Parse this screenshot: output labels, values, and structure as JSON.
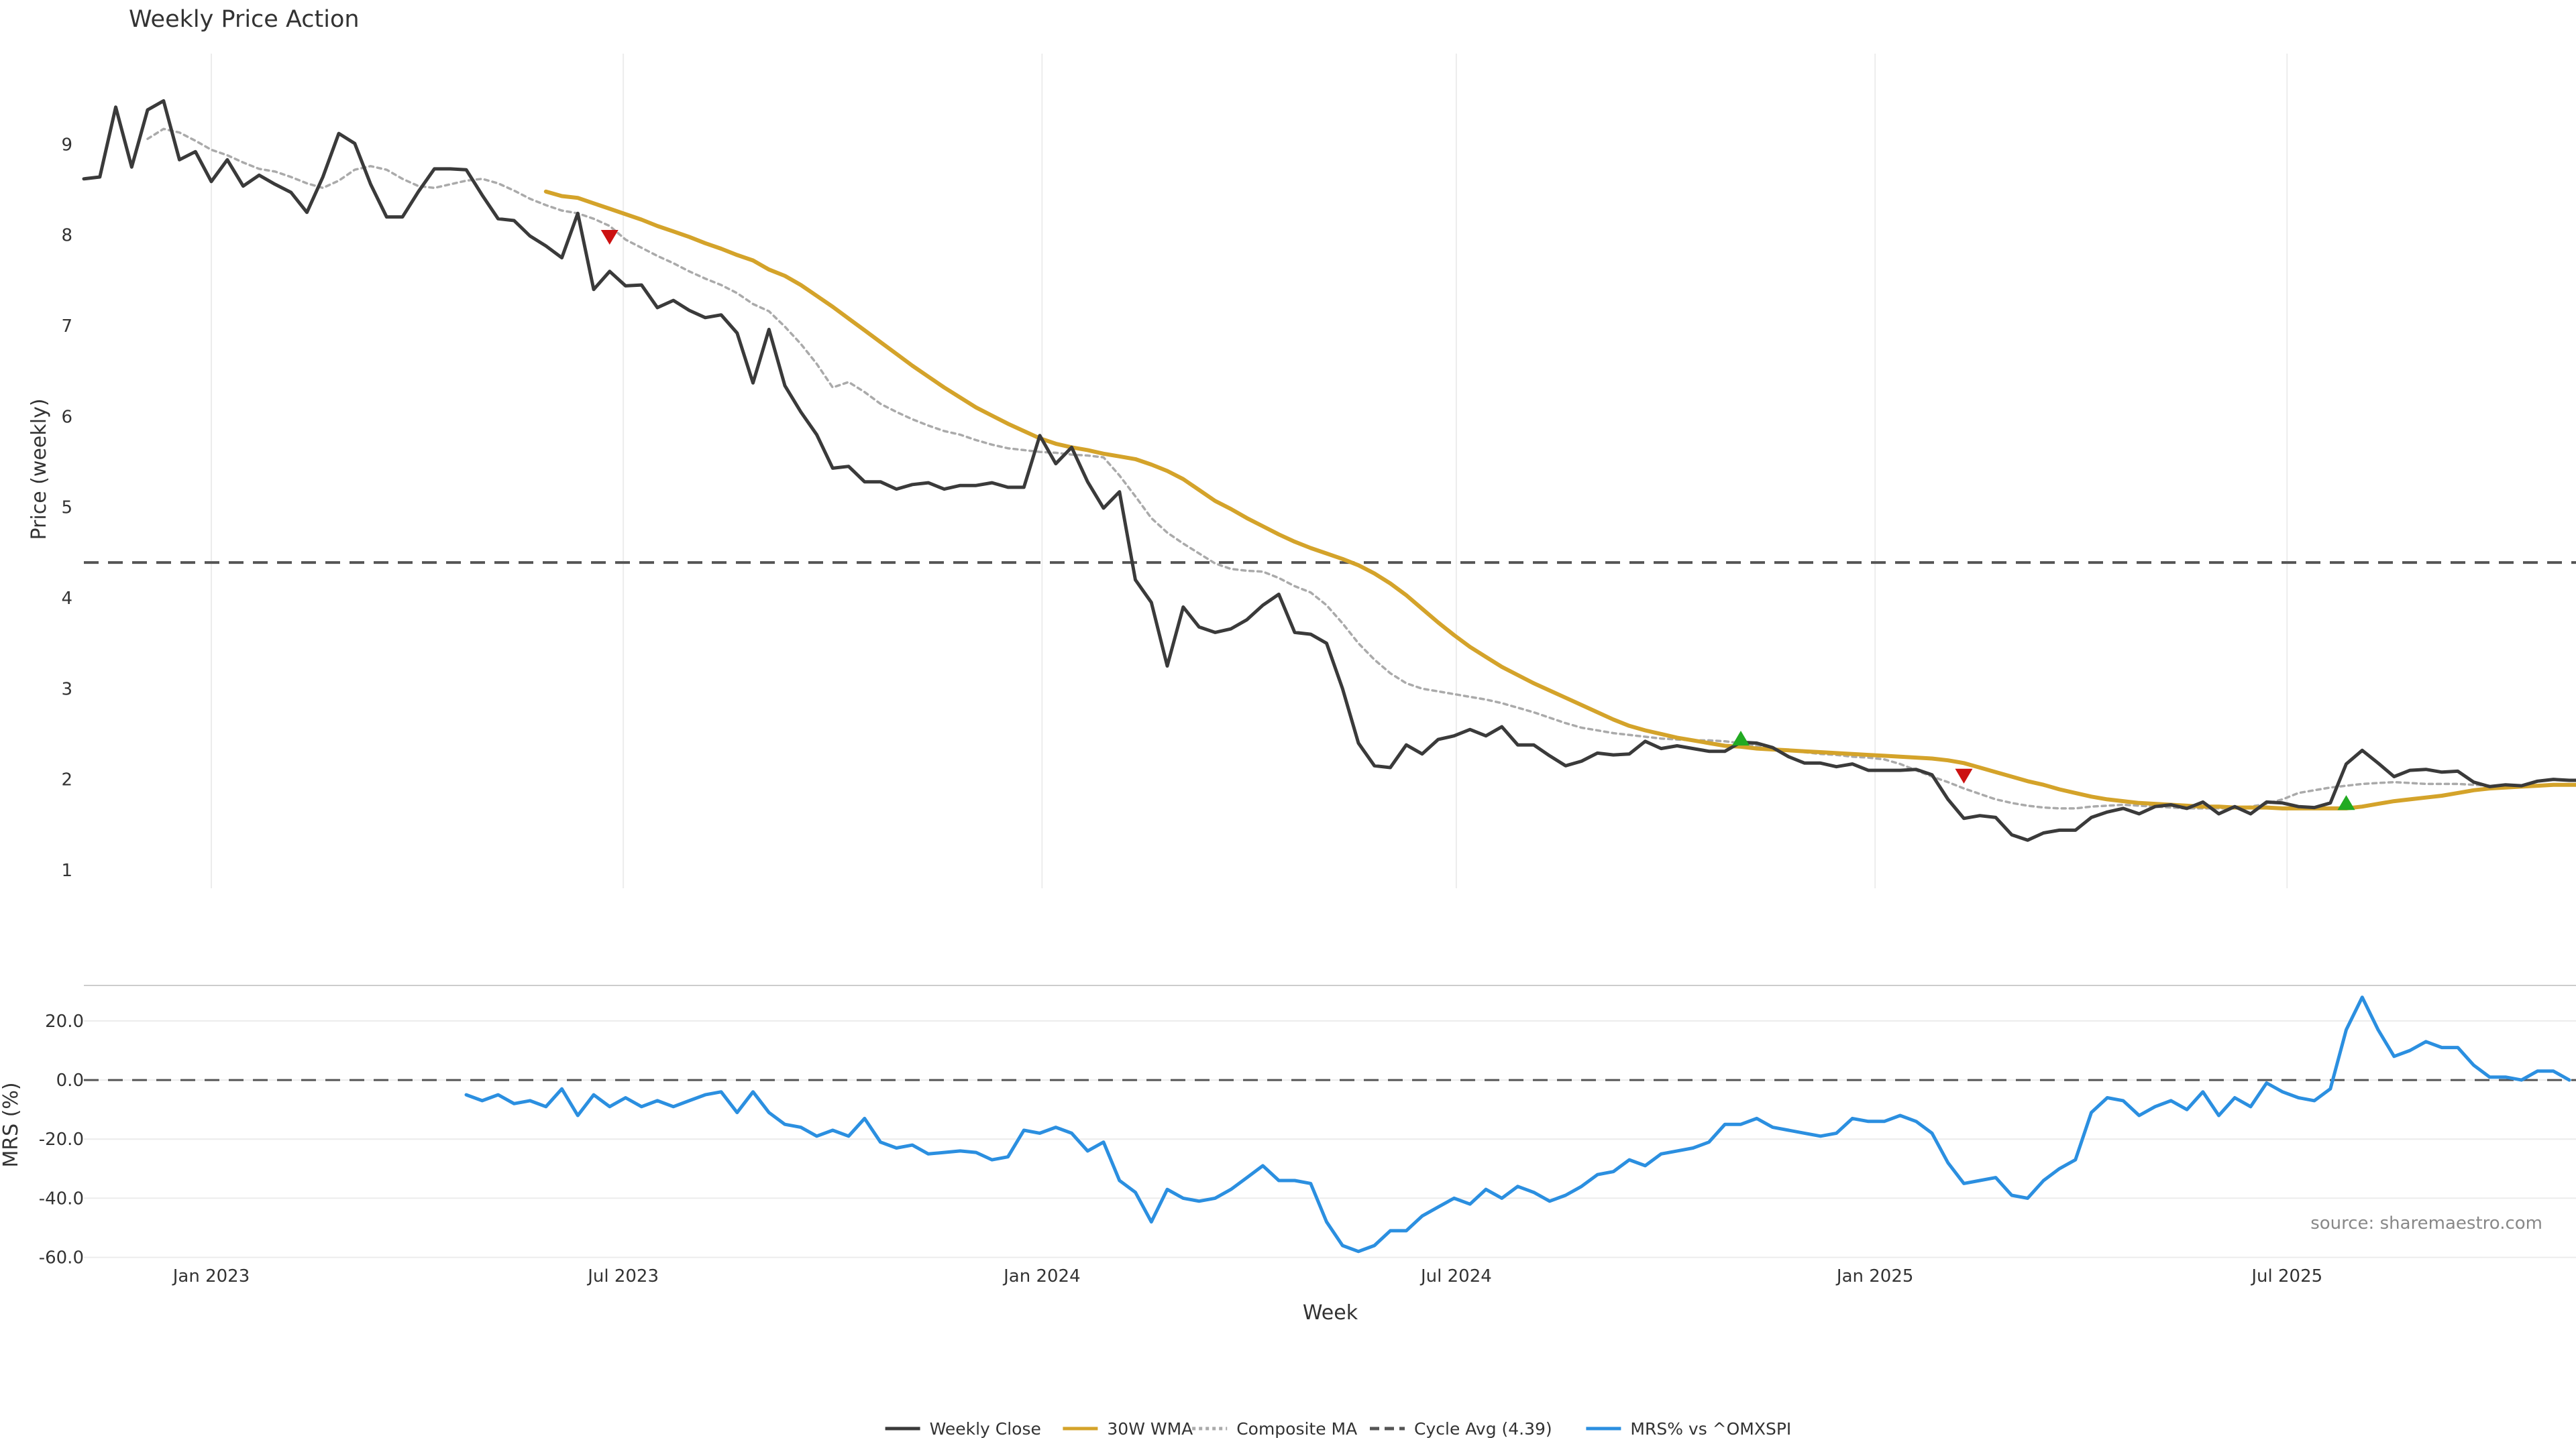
{
  "chart_data": [
    {
      "type": "line",
      "title": "Weekly Price Action",
      "ylabel": "Price (weekly)",
      "ylim": [
        0.8,
        10.0
      ],
      "yticks": [
        1,
        2,
        3,
        4,
        5,
        6,
        7,
        8,
        9
      ],
      "x_start": "2022-11-06",
      "week_count": 158,
      "grid": "vertical",
      "series": [
        {
          "name": "Weekly Close",
          "color": "#3a3a3a",
          "style": "solid",
          "values": [
            8.62,
            8.64,
            9.41,
            8.75,
            9.38,
            9.48,
            8.83,
            8.92,
            8.59,
            8.83,
            8.54,
            8.66,
            8.56,
            8.47,
            8.25,
            8.64,
            9.12,
            9.01,
            8.56,
            8.2,
            8.2,
            8.48,
            8.73,
            8.73,
            8.72,
            8.44,
            8.18,
            8.16,
            7.99,
            7.88,
            7.75,
            8.24,
            7.4,
            7.6,
            7.44,
            7.45,
            7.2,
            7.28,
            7.17,
            7.09,
            7.12,
            6.92,
            6.37,
            6.96,
            6.34,
            6.05,
            5.8,
            5.43,
            5.45,
            5.28,
            5.28,
            5.2,
            5.25,
            5.27,
            5.2,
            5.24,
            5.24,
            5.27,
            5.22,
            5.22,
            5.79,
            5.48,
            5.66,
            5.28,
            4.99,
            5.17,
            4.2,
            3.95,
            3.25,
            3.9,
            3.68,
            3.62,
            3.66,
            3.76,
            3.92,
            4.04,
            3.62,
            3.6,
            3.5,
            3.0,
            2.4,
            2.15,
            2.13,
            2.38,
            2.28,
            2.44,
            2.48,
            2.55,
            2.48,
            2.58,
            2.38,
            2.38,
            2.26,
            2.15,
            2.2,
            2.29,
            2.27,
            2.28,
            2.42,
            2.34,
            2.37,
            2.34,
            2.31,
            2.31,
            2.41,
            2.4,
            2.35,
            2.25,
            2.18,
            2.18,
            2.14,
            2.17,
            2.1,
            2.1,
            2.1,
            2.11,
            2.05,
            1.78,
            1.57,
            1.6,
            1.58,
            1.39,
            1.33,
            1.41,
            1.44,
            1.44,
            1.58,
            1.64,
            1.68,
            1.62,
            1.7,
            1.72,
            1.68,
            1.75,
            1.62,
            1.7,
            1.62,
            1.75,
            1.74,
            1.7,
            1.69,
            1.74,
            2.17,
            2.32,
            2.18,
            2.03,
            2.1,
            2.11,
            2.08,
            2.09,
            1.97,
            1.92,
            1.94,
            1.93,
            1.98,
            2.0,
            1.99,
            1.99
          ]
        },
        {
          "name": "30W WMA",
          "color": "#d4a32a",
          "style": "solid",
          "start_index": 29,
          "values": [
            8.48,
            8.43,
            8.41,
            8.35,
            8.29,
            8.23,
            8.17,
            8.1,
            8.04,
            7.98,
            7.91,
            7.85,
            7.78,
            7.72,
            7.62,
            7.55,
            7.45,
            7.33,
            7.21,
            7.08,
            6.95,
            6.82,
            6.69,
            6.56,
            6.44,
            6.32,
            6.21,
            6.1,
            6.01,
            5.92,
            5.84,
            5.76,
            5.7,
            5.66,
            5.63,
            5.59,
            5.56,
            5.53,
            5.47,
            5.4,
            5.31,
            5.19,
            5.07,
            4.98,
            4.88,
            4.79,
            4.7,
            4.62,
            4.55,
            4.49,
            4.43,
            4.36,
            4.27,
            4.16,
            4.03,
            3.88,
            3.73,
            3.59,
            3.46,
            3.35,
            3.24,
            3.15,
            3.06,
            2.98,
            2.9,
            2.82,
            2.74,
            2.66,
            2.59,
            2.54,
            2.5,
            2.46,
            2.43,
            2.4,
            2.37,
            2.36,
            2.34,
            2.33,
            2.32,
            2.31,
            2.3,
            2.29,
            2.28,
            2.27,
            2.26,
            2.25,
            2.24,
            2.23,
            2.21,
            2.18,
            2.13,
            2.08,
            2.03,
            1.98,
            1.94,
            1.89,
            1.85,
            1.81,
            1.78,
            1.76,
            1.74,
            1.73,
            1.72,
            1.71,
            1.7,
            1.7,
            1.69,
            1.69,
            1.69,
            1.68,
            1.68,
            1.68,
            1.68,
            1.68,
            1.7,
            1.73,
            1.76,
            1.78,
            1.8,
            1.82,
            1.85,
            1.88,
            1.9,
            1.91,
            1.92,
            1.93,
            1.94,
            1.94,
            1.94
          ]
        },
        {
          "name": "Composite MA",
          "color": "#aaaaaa",
          "style": "dotted",
          "start_index": 4,
          "values": [
            9.06,
            9.17,
            9.13,
            9.04,
            8.94,
            8.88,
            8.8,
            8.73,
            8.7,
            8.64,
            8.57,
            8.52,
            8.6,
            8.72,
            8.76,
            8.72,
            8.62,
            8.54,
            8.52,
            8.56,
            8.6,
            8.62,
            8.57,
            8.49,
            8.4,
            8.33,
            8.27,
            8.24,
            8.18,
            8.1,
            7.95,
            7.86,
            7.77,
            7.69,
            7.6,
            7.52,
            7.45,
            7.36,
            7.24,
            7.16,
            6.99,
            6.8,
            6.58,
            6.32,
            6.38,
            6.27,
            6.14,
            6.05,
            5.97,
            5.9,
            5.84,
            5.8,
            5.74,
            5.69,
            5.65,
            5.63,
            5.61,
            5.6,
            5.58,
            5.57,
            5.55,
            5.35,
            5.12,
            4.88,
            4.72,
            4.6,
            4.49,
            4.38,
            4.32,
            4.3,
            4.29,
            4.22,
            4.13,
            4.06,
            3.92,
            3.72,
            3.5,
            3.32,
            3.17,
            3.06,
            3.0,
            2.97,
            2.94,
            2.91,
            2.88,
            2.84,
            2.79,
            2.74,
            2.68,
            2.62,
            2.57,
            2.54,
            2.51,
            2.49,
            2.47,
            2.45,
            2.44,
            2.43,
            2.43,
            2.42,
            2.4,
            2.37,
            2.34,
            2.32,
            2.3,
            2.28,
            2.27,
            2.25,
            2.24,
            2.22,
            2.17,
            2.1,
            2.03,
            1.97,
            1.9,
            1.84,
            1.78,
            1.74,
            1.71,
            1.69,
            1.68,
            1.68,
            1.7,
            1.71,
            1.72,
            1.71,
            1.7,
            1.69,
            1.68,
            1.68,
            1.68,
            1.68,
            1.7,
            1.73,
            1.78,
            1.85,
            1.88,
            1.91,
            1.93,
            1.95,
            1.96,
            1.97,
            1.96,
            1.95,
            1.95,
            1.95,
            1.94,
            1.93
          ]
        }
      ],
      "reference_lines": [
        {
          "name": "Cycle Avg (4.39)",
          "value": 4.39,
          "color": "#555555",
          "style": "dashed"
        }
      ],
      "annotations": [
        {
          "kind": "sell-signal-triangle",
          "color": "#cc1111",
          "index": 33,
          "value": 7.98
        },
        {
          "kind": "buy-signal-triangle",
          "color": "#22aa22",
          "index": 104,
          "value": 2.45
        },
        {
          "kind": "sell-signal-triangle",
          "color": "#cc1111",
          "index": 118,
          "value": 2.04
        },
        {
          "kind": "buy-signal-triangle",
          "color": "#22aa22",
          "index": 142,
          "value": 1.74
        }
      ]
    },
    {
      "type": "line",
      "ylabel": "MRS (%)",
      "xlabel": "Week",
      "ylim": [
        -61,
        32
      ],
      "yticks": [
        "20.0",
        "0.0",
        "-20.0",
        "-40.0",
        "-60.0"
      ],
      "ytick_values": [
        20,
        0,
        -20,
        -40,
        -60
      ],
      "x_start": "2022-11-06",
      "xticks": [
        {
          "label": "Jan 2023",
          "date": "2023-01-01"
        },
        {
          "label": "Jul 2023",
          "date": "2023-07-01"
        },
        {
          "label": "Jan 2024",
          "date": "2024-01-01"
        },
        {
          "label": "Jul 2024",
          "date": "2024-07-01"
        },
        {
          "label": "Jan 2025",
          "date": "2025-01-01"
        },
        {
          "label": "Jul 2025",
          "date": "2025-07-01"
        }
      ],
      "grid": "horizontal",
      "series": [
        {
          "name": "MRS% vs ^OMXSPI",
          "color": "#2b8fe0",
          "style": "solid",
          "start_index": 24,
          "values": [
            -5,
            -7,
            -5,
            -8,
            -7,
            -9,
            -3,
            -12,
            -5,
            -9,
            -6,
            -9,
            -7,
            -9,
            -7,
            -5,
            -4,
            -11,
            -4,
            -11,
            -15,
            -16,
            -19,
            -17,
            -19,
            -13,
            -21,
            -23,
            -22,
            -25,
            -24.5,
            -24,
            -24.5,
            -27,
            -26,
            -17,
            -18,
            -16,
            -18,
            -24,
            -21,
            -34,
            -38,
            -48,
            -37,
            -40,
            -41,
            -40,
            -37,
            -33,
            -29,
            -34,
            -34,
            -35,
            -48,
            -56,
            -58,
            -56,
            -51,
            -51,
            -46,
            -43,
            -40,
            -42,
            -37,
            -40,
            -36,
            -38,
            -41,
            -39,
            -36,
            -32,
            -31,
            -27,
            -29,
            -25,
            -24,
            -23,
            -21,
            -15,
            -15,
            -13,
            -16,
            -17,
            -18,
            -19,
            -18,
            -13,
            -14,
            -14,
            -12,
            -14,
            -18,
            -28,
            -35,
            -34,
            -33,
            -39,
            -40,
            -34,
            -30,
            -27,
            -11,
            -6,
            -7,
            -12,
            -9,
            -7,
            -10,
            -4,
            -12,
            -6,
            -9,
            -1,
            -4,
            -6,
            -7,
            -3,
            17,
            28,
            17,
            8,
            10,
            13,
            11,
            11,
            5,
            1,
            1,
            0,
            3,
            3,
            0
          ]
        }
      ],
      "reference_lines": [
        {
          "value": 0,
          "color": "#555555",
          "style": "dashed"
        }
      ],
      "annotations": [
        {
          "kind": "text",
          "text": "source: sharemaestro.com"
        }
      ]
    }
  ],
  "legend": {
    "placement": "bottom-center",
    "items": [
      {
        "label": "Weekly Close",
        "color": "#3a3a3a",
        "style": "solid"
      },
      {
        "label": "30W WMA",
        "color": "#d4a32a",
        "style": "solid"
      },
      {
        "label": "Composite MA",
        "color": "#aaaaaa",
        "style": "dotted"
      },
      {
        "label": "Cycle Avg (4.39)",
        "color": "#555555",
        "style": "dashed"
      },
      {
        "label": "MRS% vs ^OMXSPI",
        "color": "#2b8fe0",
        "style": "solid"
      }
    ]
  }
}
